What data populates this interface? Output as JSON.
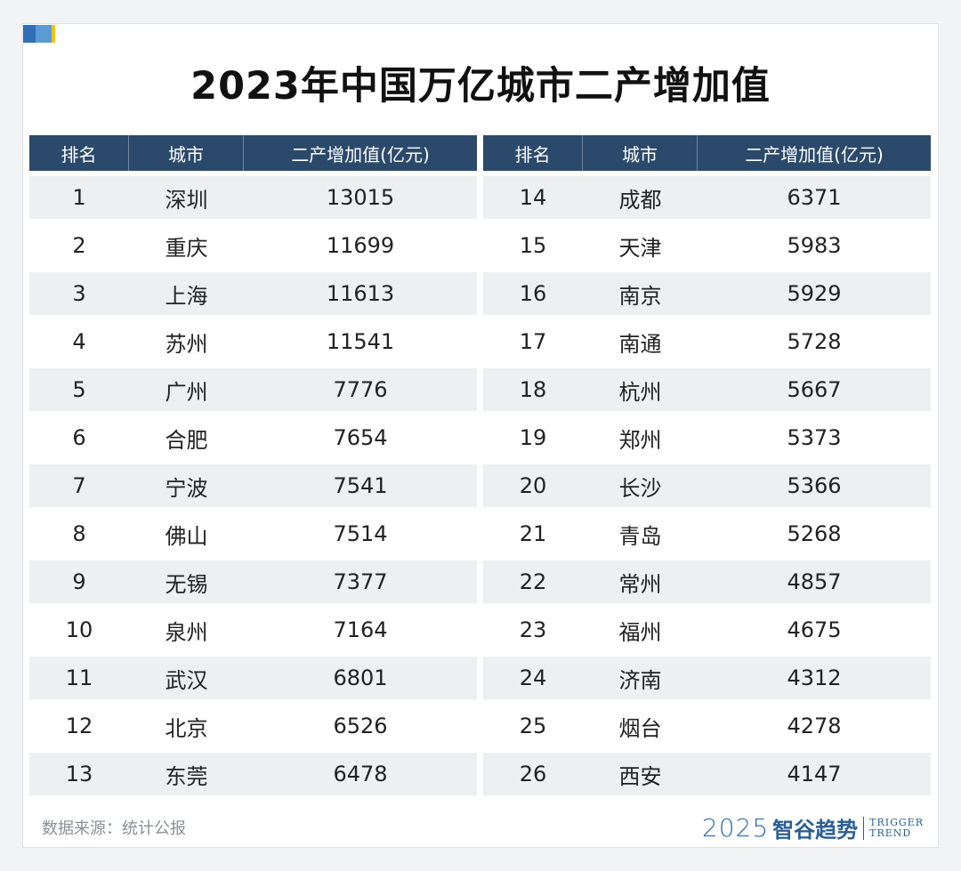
{
  "title": "2023年中国万亿城市二产增加值",
  "headers": [
    "排名",
    "城市",
    "二产增加值(亿元)"
  ],
  "chart_data": {
    "type": "table",
    "columns": [
      "排名",
      "城市",
      "二产增加值(亿元)"
    ],
    "rows": [
      [
        "1",
        "深圳",
        "13015"
      ],
      [
        "2",
        "重庆",
        "11699"
      ],
      [
        "3",
        "上海",
        "11613"
      ],
      [
        "4",
        "苏州",
        "11541"
      ],
      [
        "5",
        "广州",
        "7776"
      ],
      [
        "6",
        "合肥",
        "7654"
      ],
      [
        "7",
        "宁波",
        "7541"
      ],
      [
        "8",
        "佛山",
        "7514"
      ],
      [
        "9",
        "无锡",
        "7377"
      ],
      [
        "10",
        "泉州",
        "7164"
      ],
      [
        "11",
        "武汉",
        "6801"
      ],
      [
        "12",
        "北京",
        "6526"
      ],
      [
        "13",
        "东莞",
        "6478"
      ],
      [
        "14",
        "成都",
        "6371"
      ],
      [
        "15",
        "天津",
        "5983"
      ],
      [
        "16",
        "南京",
        "5929"
      ],
      [
        "17",
        "南通",
        "5728"
      ],
      [
        "18",
        "杭州",
        "5667"
      ],
      [
        "19",
        "郑州",
        "5373"
      ],
      [
        "20",
        "长沙",
        "5366"
      ],
      [
        "21",
        "青岛",
        "5268"
      ],
      [
        "22",
        "常州",
        "4857"
      ],
      [
        "23",
        "福州",
        "4675"
      ],
      [
        "24",
        "济南",
        "4312"
      ],
      [
        "25",
        "烟台",
        "4278"
      ],
      [
        "26",
        "西安",
        "4147"
      ]
    ]
  },
  "source": "数据来源：统计公报",
  "brand": {
    "year": "2025",
    "name": "智谷趋势",
    "en_line1": "TRIGGER",
    "en_line2": "TREND"
  },
  "colors": {
    "header_bg": "#2b4a6b",
    "row_alt": "#eeeff1",
    "brand": "#2b5f93"
  }
}
